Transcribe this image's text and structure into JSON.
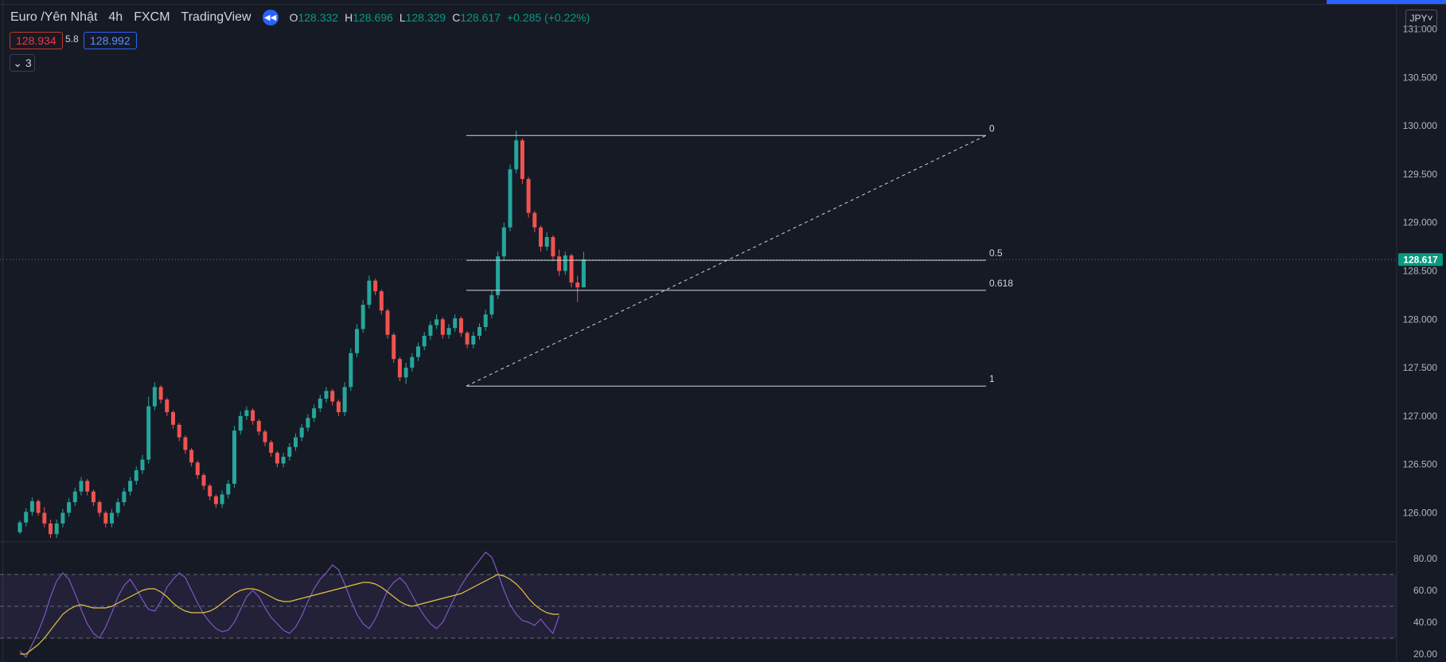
{
  "header": {
    "symbol": "Euro /Yên Nhật",
    "interval": "4h",
    "exchange": "FXCM",
    "source": "TradingView",
    "o_label": "O",
    "o_value": "128.332",
    "h_label": "H",
    "h_value": "128.696",
    "l_label": "L",
    "l_value": "128.329",
    "c_label": "C",
    "c_value": "128.617",
    "change": "+0.285 (+0.22%)",
    "bid": "128.934",
    "spread": "5.8",
    "ask": "128.992",
    "indicator_count": "3",
    "currency": "JPY"
  },
  "colors": {
    "background": "#161a25",
    "up": "#26a69a",
    "down": "#ef5350",
    "rsi": "#7e57c2",
    "rsi_ma": "#e5c340",
    "last_price_tag": "#089981",
    "accent": "#2962ff"
  },
  "chart_data": [
    {
      "type": "candlestick",
      "price_axis_labels": [
        "131.000",
        "130.500",
        "130.000",
        "129.500",
        "129.000",
        "128.500",
        "128.000",
        "127.500",
        "127.000",
        "126.500",
        "126.000"
      ],
      "ylim": [
        125.7,
        131.3
      ],
      "last_price": "128.617",
      "ohlc": [
        [
          125.8,
          125.92,
          125.78,
          125.9
        ],
        [
          125.9,
          126.05,
          125.86,
          126.01
        ],
        [
          126.01,
          126.16,
          125.97,
          126.12
        ],
        [
          126.12,
          126.14,
          125.97,
          126.0
        ],
        [
          126.0,
          126.06,
          125.85,
          125.89
        ],
        [
          125.89,
          125.93,
          125.74,
          125.78
        ],
        [
          125.78,
          125.93,
          125.74,
          125.89
        ],
        [
          125.89,
          126.04,
          125.85,
          126.0
        ],
        [
          126.0,
          126.15,
          125.96,
          126.11
        ],
        [
          126.11,
          126.26,
          126.07,
          126.22
        ],
        [
          126.22,
          126.37,
          126.18,
          126.33
        ],
        [
          126.33,
          126.35,
          126.18,
          126.22
        ],
        [
          126.22,
          126.24,
          126.07,
          126.11
        ],
        [
          126.11,
          126.13,
          125.96,
          126.0
        ],
        [
          126.0,
          126.02,
          125.85,
          125.89
        ],
        [
          125.89,
          126.04,
          125.85,
          126.0
        ],
        [
          126.0,
          126.15,
          125.96,
          126.11
        ],
        [
          126.11,
          126.26,
          126.07,
          126.22
        ],
        [
          126.22,
          126.37,
          126.18,
          126.33
        ],
        [
          126.33,
          126.48,
          126.29,
          126.44
        ],
        [
          126.44,
          126.6,
          126.4,
          126.55
        ],
        [
          126.55,
          127.2,
          126.51,
          127.1
        ],
        [
          127.1,
          127.35,
          127.06,
          127.3
        ],
        [
          127.3,
          127.32,
          127.13,
          127.17
        ],
        [
          127.17,
          127.19,
          127.0,
          127.04
        ],
        [
          127.04,
          127.06,
          126.87,
          126.91
        ],
        [
          126.91,
          126.93,
          126.74,
          126.78
        ],
        [
          126.78,
          126.8,
          126.61,
          126.65
        ],
        [
          126.65,
          126.67,
          126.48,
          126.52
        ],
        [
          126.52,
          126.54,
          126.35,
          126.39
        ],
        [
          126.39,
          126.41,
          126.24,
          126.28
        ],
        [
          126.28,
          126.3,
          126.13,
          126.17
        ],
        [
          126.17,
          126.19,
          126.05,
          126.09
        ],
        [
          126.09,
          126.23,
          126.05,
          126.19
        ],
        [
          126.19,
          126.34,
          126.15,
          126.3
        ],
        [
          126.3,
          126.9,
          126.26,
          126.85
        ],
        [
          126.85,
          127.05,
          126.81,
          127.0
        ],
        [
          127.0,
          127.1,
          126.96,
          127.06
        ],
        [
          127.06,
          127.08,
          126.91,
          126.95
        ],
        [
          126.95,
          126.97,
          126.8,
          126.84
        ],
        [
          126.84,
          126.86,
          126.69,
          126.73
        ],
        [
          126.73,
          126.75,
          126.58,
          126.62
        ],
        [
          126.62,
          126.64,
          126.47,
          126.51
        ],
        [
          126.51,
          126.62,
          126.47,
          126.58
        ],
        [
          126.58,
          126.72,
          126.54,
          126.68
        ],
        [
          126.68,
          126.82,
          126.64,
          126.78
        ],
        [
          126.78,
          126.92,
          126.74,
          126.88
        ],
        [
          126.88,
          127.02,
          126.84,
          126.98
        ],
        [
          126.98,
          127.12,
          126.94,
          127.08
        ],
        [
          127.08,
          127.22,
          127.04,
          127.18
        ],
        [
          127.18,
          127.3,
          127.14,
          127.26
        ],
        [
          127.26,
          127.28,
          127.11,
          127.15
        ],
        [
          127.15,
          127.17,
          127.0,
          127.04
        ],
        [
          127.04,
          127.35,
          127.0,
          127.3
        ],
        [
          127.3,
          127.7,
          127.26,
          127.65
        ],
        [
          127.65,
          127.95,
          127.61,
          127.9
        ],
        [
          127.9,
          128.2,
          127.86,
          128.15
        ],
        [
          128.15,
          128.45,
          128.11,
          128.4
        ],
        [
          128.4,
          128.42,
          128.25,
          128.29
        ],
        [
          128.29,
          128.31,
          128.05,
          128.09
        ],
        [
          128.09,
          128.11,
          127.8,
          127.84
        ],
        [
          127.84,
          127.86,
          127.55,
          127.59
        ],
        [
          127.59,
          127.61,
          127.36,
          127.4
        ],
        [
          127.4,
          127.55,
          127.33,
          127.5
        ],
        [
          127.5,
          127.65,
          127.46,
          127.61
        ],
        [
          127.61,
          127.76,
          127.57,
          127.72
        ],
        [
          127.72,
          127.87,
          127.68,
          127.83
        ],
        [
          127.83,
          127.98,
          127.79,
          127.94
        ],
        [
          127.94,
          128.05,
          127.9,
          128.0
        ],
        [
          128.0,
          128.02,
          127.8,
          127.84
        ],
        [
          127.84,
          127.95,
          127.8,
          127.91
        ],
        [
          127.91,
          128.05,
          127.87,
          128.01
        ],
        [
          128.01,
          128.03,
          127.82,
          127.86
        ],
        [
          127.86,
          127.88,
          127.7,
          127.74
        ],
        [
          127.74,
          127.87,
          127.7,
          127.83
        ],
        [
          127.83,
          127.96,
          127.79,
          127.92
        ],
        [
          127.92,
          128.1,
          127.88,
          128.05
        ],
        [
          128.05,
          128.3,
          128.01,
          128.25
        ],
        [
          128.25,
          128.7,
          128.21,
          128.65
        ],
        [
          128.65,
          129.0,
          128.61,
          128.95
        ],
        [
          128.95,
          129.6,
          128.91,
          129.55
        ],
        [
          129.55,
          129.95,
          129.51,
          129.85
        ],
        [
          129.85,
          129.87,
          129.4,
          129.45
        ],
        [
          129.45,
          129.47,
          129.05,
          129.1
        ],
        [
          129.1,
          129.12,
          128.9,
          128.95
        ],
        [
          128.95,
          128.97,
          128.7,
          128.75
        ],
        [
          128.75,
          128.9,
          128.71,
          128.85
        ],
        [
          128.85,
          128.87,
          128.6,
          128.65
        ],
        [
          128.65,
          128.72,
          128.45,
          128.5
        ],
        [
          128.5,
          128.7,
          128.46,
          128.66
        ],
        [
          128.66,
          128.68,
          128.33,
          128.38
        ],
        [
          128.38,
          128.45,
          128.18,
          128.33
        ],
        [
          128.33,
          128.7,
          128.33,
          128.62
        ]
      ]
    },
    {
      "type": "fibonacci",
      "levels": [
        {
          "label": "0",
          "price": 129.9
        },
        {
          "label": "0.5",
          "price": 128.61
        },
        {
          "label": "0.618",
          "price": 128.3
        },
        {
          "label": "1",
          "price": 127.31
        }
      ],
      "trendline": {
        "from": 127.31,
        "to": 129.9
      }
    },
    {
      "type": "line",
      "axis_labels": [
        "80.00",
        "60.00",
        "40.00",
        "20.00"
      ],
      "ylim": [
        15,
        86
      ],
      "bands": [
        30,
        50,
        70
      ],
      "series": [
        {
          "values": [
            22,
            18,
            26,
            34,
            44,
            56,
            66,
            71,
            67,
            58,
            48,
            39,
            33,
            30,
            37,
            46,
            56,
            63,
            67,
            61,
            54,
            48,
            47,
            53,
            62,
            67,
            71,
            68,
            60,
            52,
            45,
            40,
            36,
            34,
            35,
            40,
            48,
            56,
            60,
            56,
            49,
            43,
            39,
            35,
            33,
            37,
            44,
            53,
            61,
            67,
            71,
            76,
            73,
            64,
            54,
            45,
            39,
            36,
            42,
            51,
            60,
            65,
            68,
            64,
            57,
            50,
            44,
            39,
            36,
            40,
            48,
            56,
            63,
            69,
            74,
            79,
            84,
            81,
            71,
            60,
            51,
            45,
            41,
            40,
            38,
            42,
            37,
            33,
            44
          ]
        },
        {
          "values": [
            20,
            20,
            23,
            26,
            30,
            35,
            40,
            45,
            48,
            50,
            51,
            50,
            49,
            49,
            49,
            50,
            52,
            54,
            56,
            58,
            60,
            61,
            61,
            59,
            56,
            52,
            49,
            47,
            46,
            46,
            46,
            47,
            49,
            52,
            55,
            58,
            60,
            61,
            61,
            60,
            58,
            56,
            54,
            53,
            53,
            54,
            55,
            56,
            57,
            58,
            59,
            60,
            61,
            62,
            63,
            64,
            65,
            65,
            64,
            62,
            59,
            56,
            53,
            51,
            50,
            51,
            52,
            53,
            54,
            55,
            56,
            57,
            58,
            60,
            62,
            64,
            66,
            68,
            70,
            69,
            67,
            64,
            60,
            55,
            51,
            48,
            46,
            45,
            45
          ]
        }
      ]
    }
  ]
}
